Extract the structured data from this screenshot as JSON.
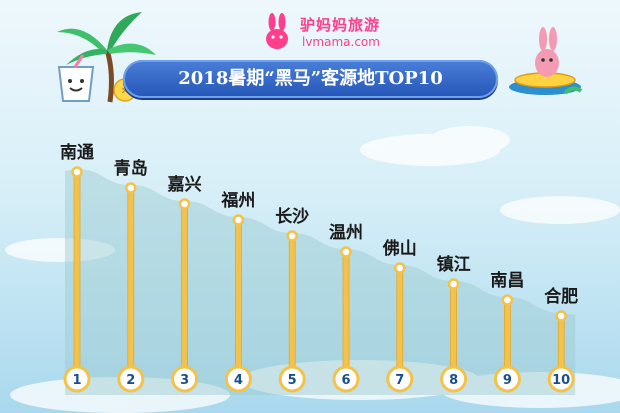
{
  "header": {
    "brand_cn": "驴妈妈旅游",
    "brand_en": "lvmama.com",
    "title": "2018暑期“黑马”客源地TOP10"
  },
  "colors": {
    "bar": "#f3c24a",
    "bar_edge": "#e2a92e",
    "area": "#9cc9cf",
    "banner": "#2d62c4",
    "brand": "#ff3e8e"
  },
  "chart_data": {
    "type": "bar",
    "title": "2018暑期“黑马”客源地TOP10",
    "categories": [
      "南通",
      "青岛",
      "嘉兴",
      "福州",
      "长沙",
      "温州",
      "佛山",
      "镇江",
      "南昌",
      "合肥"
    ],
    "ranks": [
      "1",
      "2",
      "3",
      "4",
      "5",
      "6",
      "7",
      "8",
      "9",
      "10"
    ],
    "values": [
      10,
      9,
      8,
      7,
      6,
      5,
      4,
      3,
      2,
      1
    ],
    "value_meaning": "rank order",
    "grid": false,
    "legend": "none"
  }
}
